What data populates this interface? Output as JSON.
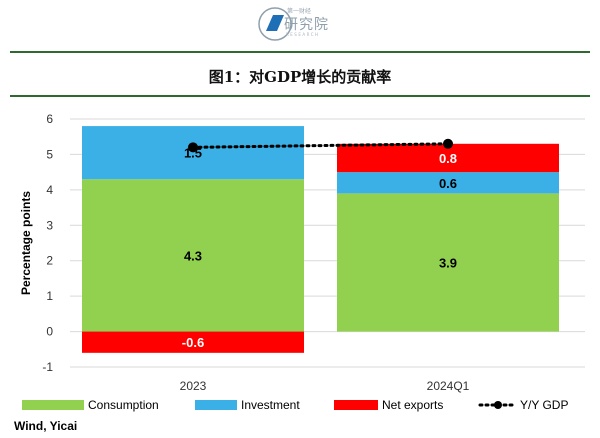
{
  "logo": {
    "top_text": "第一财经",
    "name": "研究院",
    "sub": "RESEARCH"
  },
  "title": "图1：对GDP增长的贡献率",
  "source": "Wind, Yicai",
  "colors": {
    "consumption": "#92d050",
    "investment": "#3bb0e6",
    "net_exports": "#ff0000",
    "gdp": "#000000",
    "rule": "#2e6a30"
  },
  "chart_data": {
    "type": "bar",
    "stacked": true,
    "categories": [
      "2023",
      "2024Q1"
    ],
    "series": [
      {
        "name": "Consumption",
        "values": [
          4.3,
          3.9
        ],
        "labels": [
          "4.3",
          "3.9"
        ]
      },
      {
        "name": "Investment",
        "values": [
          1.5,
          0.6
        ],
        "labels": [
          "1.5",
          "0.6"
        ]
      },
      {
        "name": "Net exports",
        "values": [
          -0.6,
          0.8
        ],
        "labels": [
          "-0.6",
          "0.8"
        ]
      }
    ],
    "line": {
      "name": "Y/Y GDP",
      "values": [
        5.2,
        5.3
      ],
      "style": "dotted",
      "markers": true
    },
    "ylabel": "Percentage points",
    "xlabel": "",
    "ylim": [
      -1,
      6
    ],
    "yticks": [
      "-1",
      "0",
      "1",
      "2",
      "3",
      "4",
      "5",
      "6"
    ],
    "grid": true,
    "legend": "bottom"
  }
}
